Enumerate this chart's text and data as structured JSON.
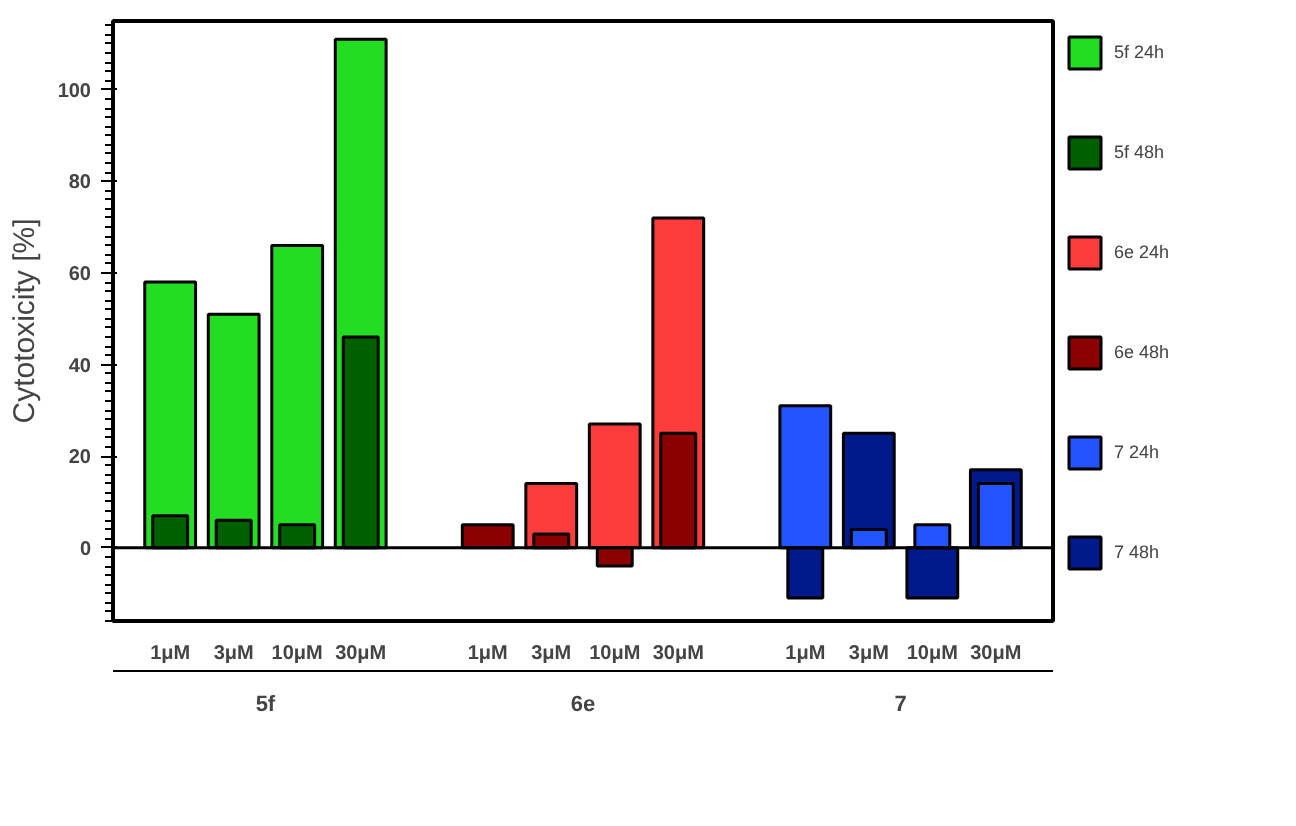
{
  "chart_data": {
    "type": "bar",
    "ylabel": "Cytotoxicity [%]",
    "categories": [
      "1μM",
      "3μM",
      "10μM",
      "30μM",
      "1μM",
      "3μM",
      "10μM",
      "30μM",
      "1μM",
      "3μM",
      "10μM",
      "30μM"
    ],
    "series": [
      {
        "name": "5f 24h",
        "color": "#22dd22",
        "values": [
          58,
          51,
          66,
          111,
          null,
          null,
          null,
          null,
          null,
          null,
          null,
          null
        ]
      },
      {
        "name": "5f 48h",
        "color": "#006000",
        "values": [
          7,
          6,
          5,
          46,
          null,
          null,
          null,
          null,
          null,
          null,
          null,
          null
        ]
      },
      {
        "name": "6e 24h",
        "color": "#ff3c3c",
        "values": [
          null,
          null,
          null,
          null,
          null,
          14,
          27,
          72,
          null,
          null,
          null,
          null
        ]
      },
      {
        "name": "6e 48h",
        "color": "#8b0000",
        "values": [
          null,
          null,
          null,
          null,
          5,
          3,
          -4,
          25,
          null,
          null,
          null,
          null
        ]
      },
      {
        "name": "7 24h",
        "color": "#2255ff",
        "values": [
          null,
          null,
          null,
          null,
          null,
          null,
          null,
          null,
          31,
          4,
          5,
          14
        ]
      },
      {
        "name": "7 48h",
        "color": "#001a8c",
        "values": [
          null,
          null,
          null,
          null,
          null,
          null,
          null,
          null,
          -11,
          25,
          -11,
          17
        ]
      }
    ],
    "annotations": [
      "5f",
      "6e",
      "7"
    ],
    "ref_lines": [
      {
        "axis": "y",
        "value": 0
      }
    ],
    "ylim": [
      -16,
      115
    ],
    "yticks": [
      0,
      20,
      40,
      60,
      80,
      100
    ],
    "legend": "right",
    "grid": false
  }
}
